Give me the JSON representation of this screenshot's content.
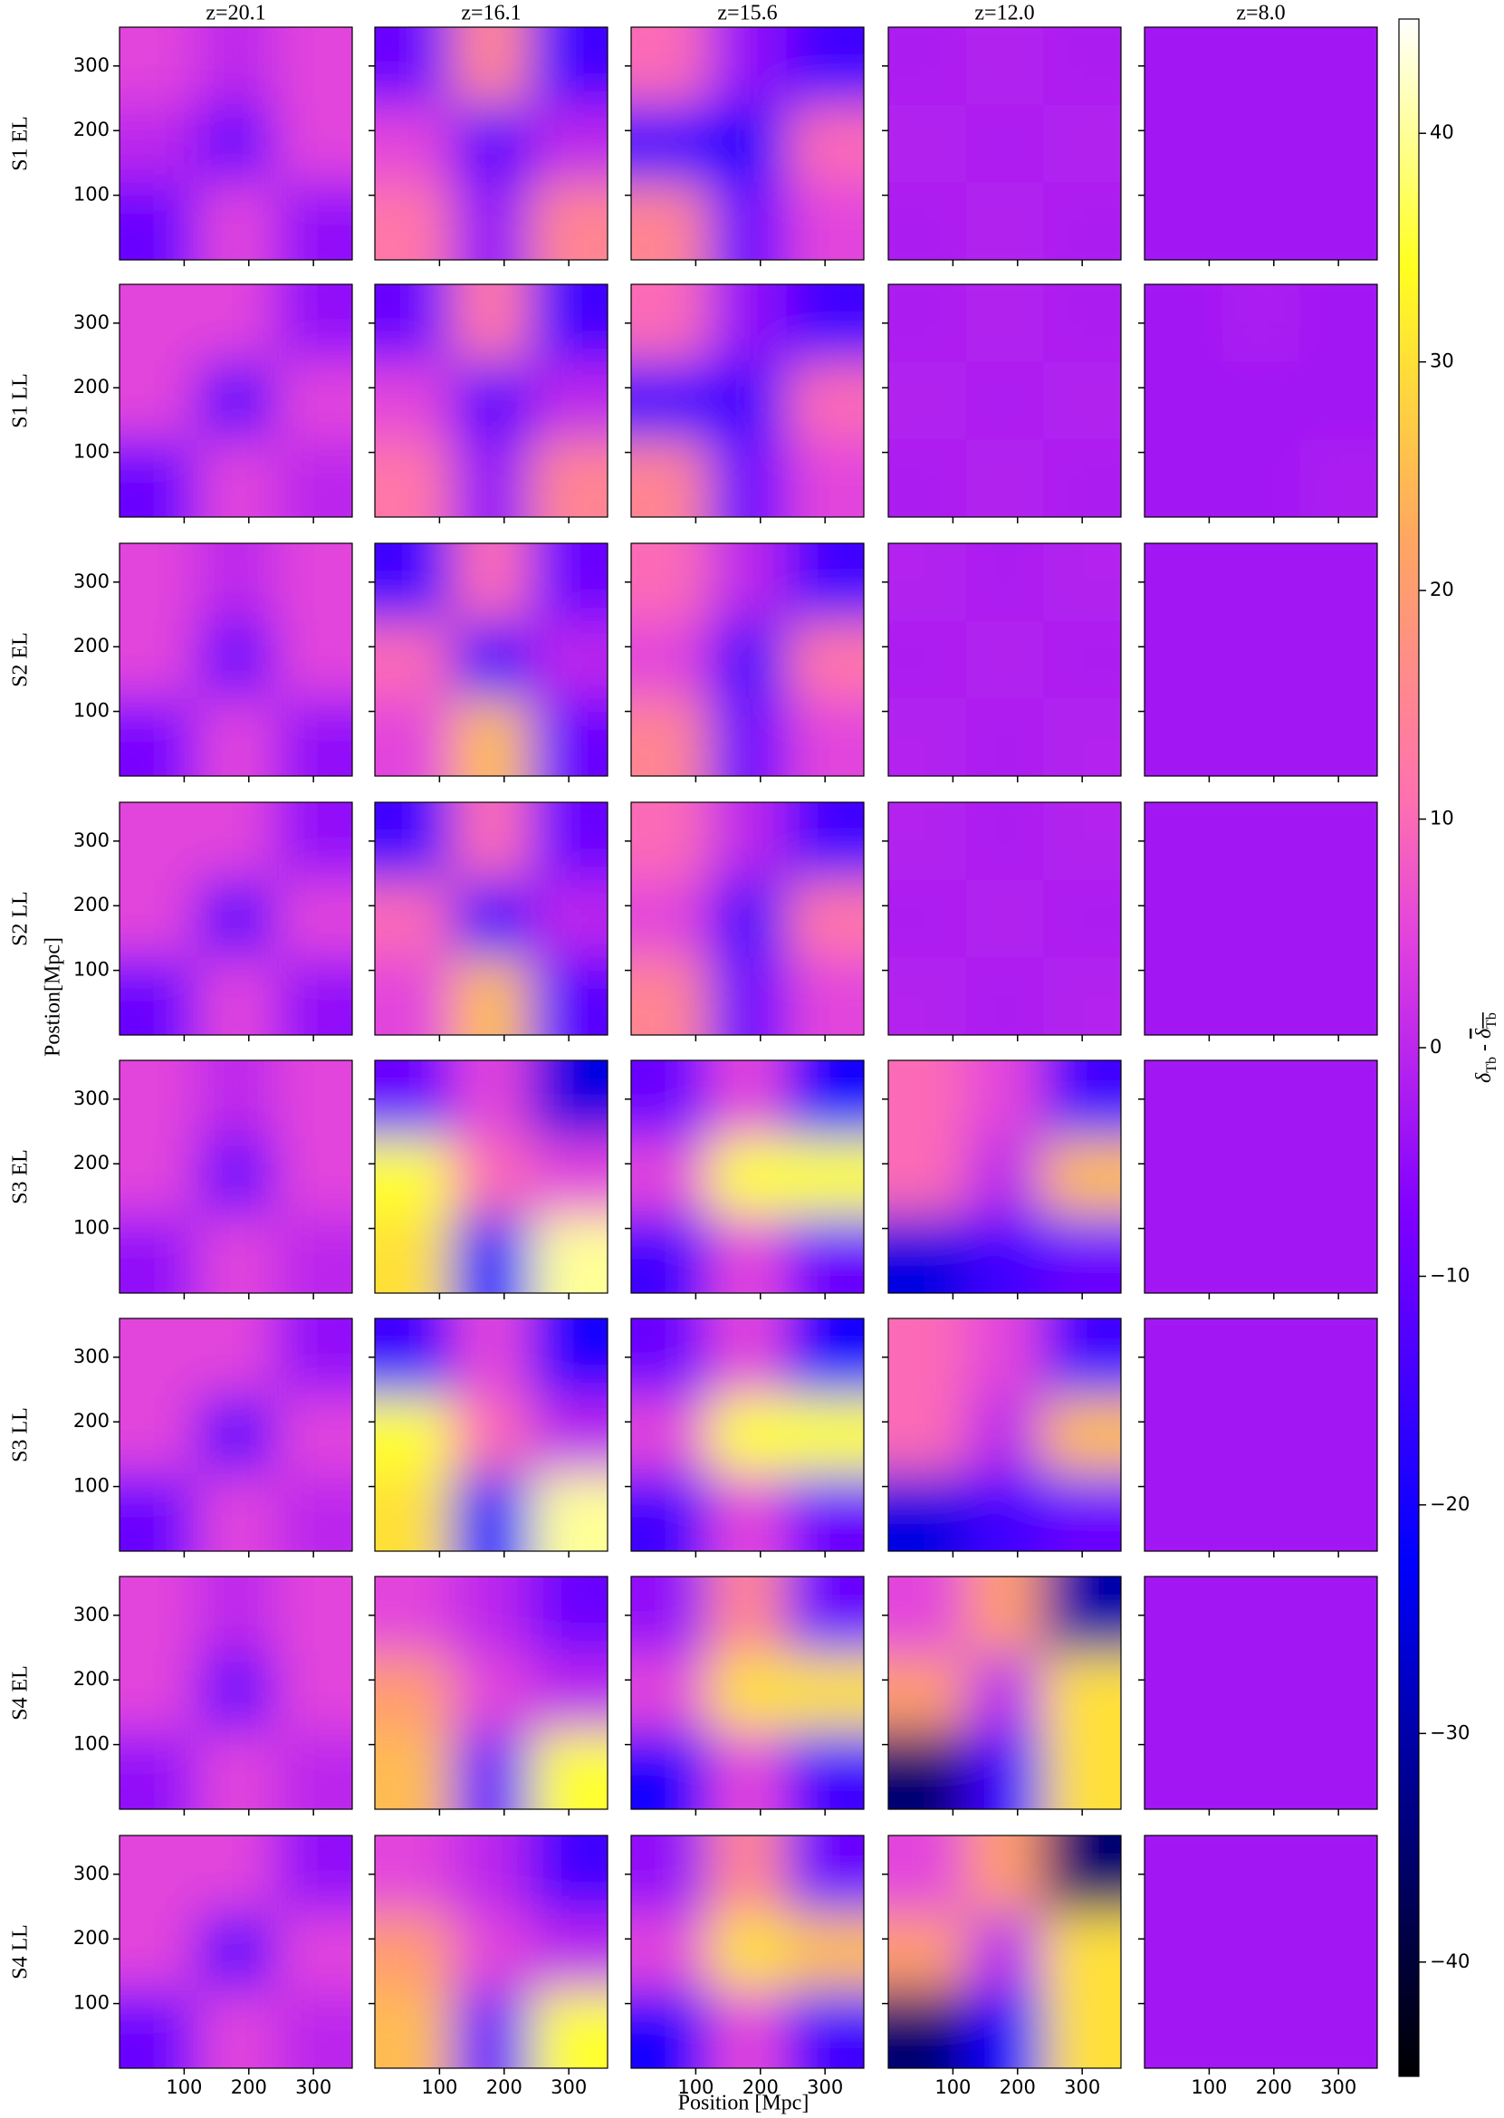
{
  "chart_data": {
    "type": "heatmap-grid",
    "columns": [
      "z=20.1",
      "z=16.1",
      "z=15.6",
      "z=12.0",
      "z=8.0"
    ],
    "rows": [
      "S1 EL",
      "S1 LL",
      "S2 EL",
      "S2 LL",
      "S3 EL",
      "S3 LL",
      "S4 EL",
      "S4 LL"
    ],
    "xlabel": "Position [Mpc]",
    "ylabel": "Postion[Mpc]",
    "xlim": [
      0,
      360
    ],
    "ylim": [
      0,
      360
    ],
    "xticks": [
      100,
      200,
      300
    ],
    "yticks": [
      100,
      200,
      300
    ],
    "colorbar": {
      "lim": [
        -45,
        45
      ],
      "ticks": [
        {
          "value": -40,
          "label": "−40"
        },
        {
          "value": -30,
          "label": "−30"
        },
        {
          "value": -20,
          "label": "−20"
        },
        {
          "value": -10,
          "label": "−10"
        },
        0,
        10,
        20,
        30,
        40
      ],
      "label": [
        "δ",
        "Tb",
        " - ",
        "δ",
        "Tb"
      ],
      "colormap": [
        [
          0,
          "#000000"
        ],
        [
          0.25,
          "#0000ff"
        ],
        [
          0.42,
          "#8000ff"
        ],
        [
          0.55,
          "#e040e0"
        ],
        [
          0.62,
          "#ff70b0"
        ],
        [
          0.75,
          "#ffa860"
        ],
        [
          0.88,
          "#ffff20"
        ],
        [
          1,
          "#ffffff"
        ]
      ]
    },
    "panels": [
      [
        [
          [
            5,
            0,
            5
          ],
          [
            0,
            -10,
            5
          ],
          [
            -10,
            5,
            -5
          ]
        ],
        [
          [
            -10,
            15,
            -15
          ],
          [
            5,
            -12,
            0
          ],
          [
            12,
            -5,
            15
          ]
        ],
        [
          [
            10,
            -5,
            -15
          ],
          [
            -15,
            -20,
            10
          ],
          [
            15,
            -10,
            5
          ]
        ],
        [
          [
            -2,
            -1,
            -2
          ],
          [
            -1,
            -2,
            -1
          ],
          [
            -2,
            -1,
            -2
          ]
        ],
        [
          [
            -3,
            -3,
            -3
          ],
          [
            -3,
            -3,
            -3
          ],
          [
            -3,
            -3,
            -3
          ]
        ]
      ],
      [
        [
          [
            5,
            5,
            -5
          ],
          [
            5,
            -12,
            5
          ],
          [
            -10,
            5,
            0
          ]
        ],
        [
          [
            -10,
            12,
            -15
          ],
          [
            5,
            -12,
            0
          ],
          [
            12,
            -5,
            15
          ]
        ],
        [
          [
            10,
            -5,
            -15
          ],
          [
            -15,
            -15,
            10
          ],
          [
            15,
            -10,
            5
          ]
        ],
        [
          [
            -2,
            -1,
            -2
          ],
          [
            -1,
            -2,
            -1
          ],
          [
            -2,
            -1,
            -2
          ]
        ],
        [
          [
            -3,
            -2,
            -3
          ],
          [
            -3,
            -3,
            -3
          ],
          [
            -3,
            -3,
            -2
          ]
        ]
      ],
      [
        [
          [
            5,
            0,
            5
          ],
          [
            5,
            -10,
            5
          ],
          [
            -8,
            5,
            -5
          ]
        ],
        [
          [
            -15,
            10,
            -10
          ],
          [
            10,
            -15,
            0
          ],
          [
            5,
            25,
            -10
          ]
        ],
        [
          [
            10,
            0,
            -15
          ],
          [
            5,
            -15,
            12
          ],
          [
            15,
            -10,
            5
          ]
        ],
        [
          [
            -1,
            -2,
            -1
          ],
          [
            -2,
            -1,
            -2
          ],
          [
            -1,
            -2,
            -1
          ]
        ],
        [
          [
            -3,
            -3,
            -3
          ],
          [
            -3,
            -3,
            -3
          ],
          [
            -3,
            -3,
            -3
          ]
        ]
      ],
      [
        [
          [
            5,
            5,
            -5
          ],
          [
            5,
            -12,
            5
          ],
          [
            -10,
            5,
            -5
          ]
        ],
        [
          [
            -15,
            10,
            -10
          ],
          [
            10,
            -15,
            0
          ],
          [
            5,
            25,
            -12
          ]
        ],
        [
          [
            10,
            0,
            -15
          ],
          [
            5,
            -15,
            12
          ],
          [
            15,
            -10,
            5
          ]
        ],
        [
          [
            -1,
            -2,
            -1
          ],
          [
            -2,
            -1,
            -2
          ],
          [
            -1,
            -2,
            -1
          ]
        ],
        [
          [
            -3,
            -3,
            -3
          ],
          [
            -3,
            -3,
            -3
          ],
          [
            -3,
            -3,
            -3
          ]
        ]
      ],
      [
        [
          [
            5,
            0,
            5
          ],
          [
            5,
            -10,
            5
          ],
          [
            -5,
            5,
            0
          ]
        ],
        [
          [
            -10,
            5,
            -25
          ],
          [
            35,
            10,
            5
          ],
          [
            30,
            -20,
            40
          ]
        ],
        [
          [
            -10,
            5,
            -20
          ],
          [
            5,
            35,
            35
          ],
          [
            -15,
            5,
            -10
          ]
        ],
        [
          [
            10,
            5,
            -15
          ],
          [
            10,
            0,
            25
          ],
          [
            -25,
            -15,
            -10
          ]
        ],
        [
          [
            -3,
            -3,
            -3
          ],
          [
            -3,
            -3,
            -3
          ],
          [
            -3,
            -3,
            -3
          ]
        ]
      ],
      [
        [
          [
            5,
            5,
            -5
          ],
          [
            5,
            -12,
            5
          ],
          [
            -10,
            5,
            0
          ]
        ],
        [
          [
            -15,
            5,
            -20
          ],
          [
            35,
            10,
            0
          ],
          [
            30,
            -20,
            40
          ]
        ],
        [
          [
            -10,
            5,
            -20
          ],
          [
            5,
            35,
            35
          ],
          [
            -15,
            5,
            -10
          ]
        ],
        [
          [
            10,
            5,
            -15
          ],
          [
            10,
            0,
            25
          ],
          [
            -25,
            -15,
            -10
          ]
        ],
        [
          [
            -3,
            -3,
            -3
          ],
          [
            -3,
            -3,
            -3
          ],
          [
            -3,
            -3,
            -3
          ]
        ]
      ],
      [
        [
          [
            5,
            0,
            5
          ],
          [
            5,
            -10,
            5
          ],
          [
            -5,
            5,
            0
          ]
        ],
        [
          [
            5,
            0,
            -10
          ],
          [
            20,
            5,
            0
          ],
          [
            25,
            -10,
            35
          ]
        ],
        [
          [
            -5,
            15,
            -10
          ],
          [
            5,
            30,
            30
          ],
          [
            -20,
            5,
            -15
          ]
        ],
        [
          [
            5,
            20,
            -30
          ],
          [
            20,
            0,
            30
          ],
          [
            -35,
            -15,
            30
          ]
        ],
        [
          [
            -3,
            -3,
            -3
          ],
          [
            -3,
            -3,
            -3
          ],
          [
            -3,
            -3,
            -3
          ]
        ]
      ],
      [
        [
          [
            5,
            5,
            -5
          ],
          [
            5,
            -12,
            5
          ],
          [
            -10,
            5,
            0
          ]
        ],
        [
          [
            5,
            0,
            -15
          ],
          [
            20,
            5,
            0
          ],
          [
            25,
            -10,
            35
          ]
        ],
        [
          [
            -5,
            15,
            -10
          ],
          [
            5,
            30,
            25
          ],
          [
            -20,
            5,
            -15
          ]
        ],
        [
          [
            5,
            20,
            -35
          ],
          [
            20,
            0,
            30
          ],
          [
            -35,
            -20,
            30
          ]
        ],
        [
          [
            -3,
            -3,
            -3
          ],
          [
            -3,
            -3,
            -3
          ],
          [
            -3,
            -3,
            -3
          ]
        ]
      ]
    ]
  }
}
